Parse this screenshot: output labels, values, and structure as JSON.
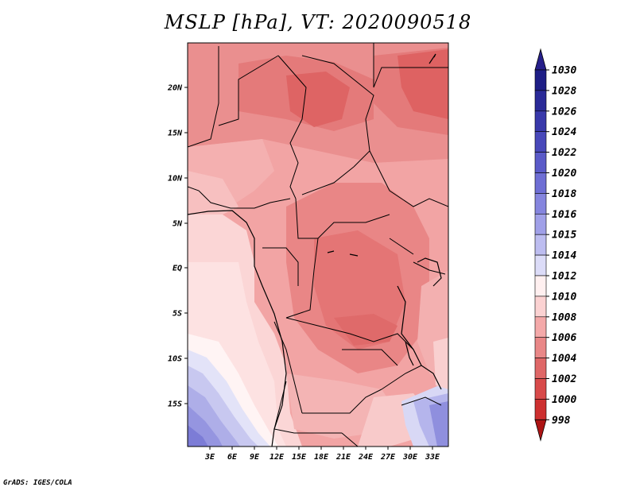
{
  "title": "MSLP [hPa], VT: 2020090518",
  "footer": "GrADS: IGES/COLA",
  "map": {
    "lat_ticks": [
      "20N",
      "15N",
      "10N",
      "5N",
      "EQ",
      "5S",
      "10S",
      "15S"
    ],
    "lon_ticks": [
      "3E",
      "6E",
      "9E",
      "12E",
      "15E",
      "18E",
      "21E",
      "24E",
      "27E",
      "30E",
      "33E"
    ]
  },
  "colorbar": {
    "labels": [
      "1030",
      "1028",
      "1026",
      "1024",
      "1022",
      "1020",
      "1018",
      "1016",
      "1015",
      "1014",
      "1012",
      "1010",
      "1008",
      "1006",
      "1004",
      "1002",
      "1000",
      "998"
    ],
    "colors": {
      "top_arrow": "#261f8a",
      "bands": [
        "#1e1e86",
        "#2a2a98",
        "#3838aa",
        "#4848ba",
        "#5a5ac8",
        "#6e6ed4",
        "#8585de",
        "#a0a0e8",
        "#bdbdf0",
        "#dcdcf8",
        "#fff0f0",
        "#fbd2d2",
        "#f4a9a9",
        "#e98787",
        "#df6767",
        "#d84a4a",
        "#cd3030",
        "#bb1f1f"
      ],
      "bottom_arrow": "#ad1414"
    }
  }
}
